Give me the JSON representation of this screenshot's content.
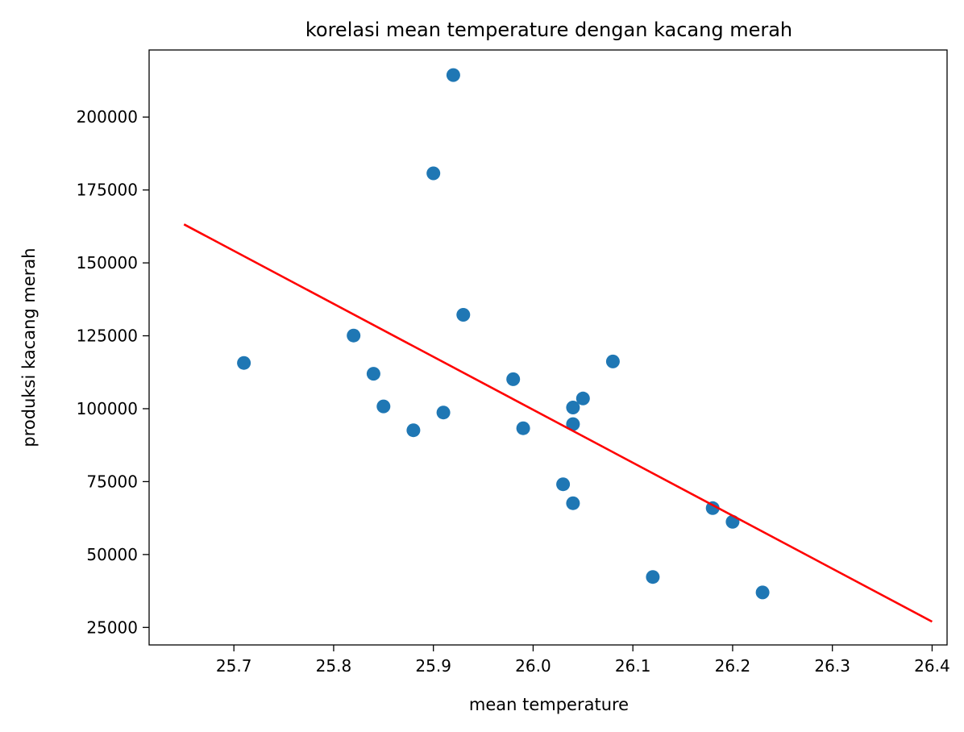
{
  "chart_data": {
    "type": "scatter",
    "title": "korelasi mean temperature dengan kacang merah",
    "xlabel": "mean temperature",
    "ylabel": "produksi kacang merah",
    "xlim": [
      25.615,
      26.415
    ],
    "ylim": [
      19000,
      223000
    ],
    "x_ticks": [
      25.7,
      25.8,
      25.9,
      26.0,
      26.1,
      26.2,
      26.3,
      26.4
    ],
    "x_tick_labels": [
      "25.7",
      "25.8",
      "25.9",
      "26.0",
      "26.1",
      "26.2",
      "26.3",
      "26.4"
    ],
    "y_ticks": [
      25000,
      50000,
      75000,
      100000,
      125000,
      150000,
      175000,
      200000
    ],
    "y_tick_labels": [
      "25000",
      "50000",
      "75000",
      "100000",
      "125000",
      "150000",
      "175000",
      "200000"
    ],
    "grid": false,
    "colors": {
      "points": "#1f77b4",
      "line": "#ff0000",
      "axes": "#000000"
    },
    "points": [
      {
        "x": 25.71,
        "y": 115700
      },
      {
        "x": 25.82,
        "y": 125100
      },
      {
        "x": 25.84,
        "y": 112000
      },
      {
        "x": 25.85,
        "y": 100800
      },
      {
        "x": 25.88,
        "y": 92600
      },
      {
        "x": 25.9,
        "y": 180700
      },
      {
        "x": 25.91,
        "y": 98700
      },
      {
        "x": 25.92,
        "y": 214400
      },
      {
        "x": 25.93,
        "y": 132200
      },
      {
        "x": 25.98,
        "y": 110100
      },
      {
        "x": 25.99,
        "y": 93300
      },
      {
        "x": 26.03,
        "y": 74100
      },
      {
        "x": 26.04,
        "y": 100400
      },
      {
        "x": 26.04,
        "y": 94700
      },
      {
        "x": 26.04,
        "y": 67600
      },
      {
        "x": 26.05,
        "y": 103500
      },
      {
        "x": 26.08,
        "y": 116200
      },
      {
        "x": 26.12,
        "y": 42300
      },
      {
        "x": 26.18,
        "y": 65900
      },
      {
        "x": 26.2,
        "y": 61200
      },
      {
        "x": 26.23,
        "y": 37000
      }
    ],
    "fit_line": {
      "x": [
        25.65,
        26.4
      ],
      "y": [
        163200,
        27000
      ]
    }
  }
}
